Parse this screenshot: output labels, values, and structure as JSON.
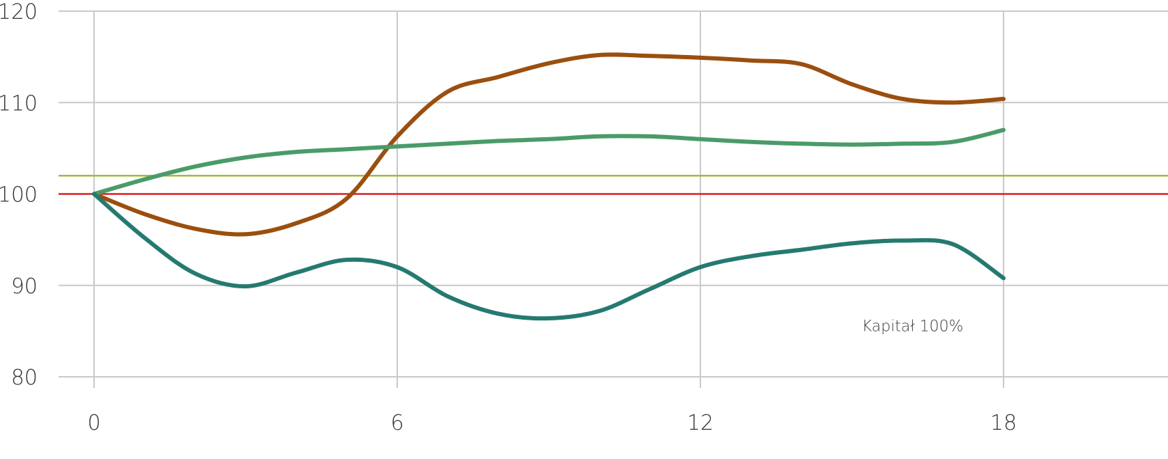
{
  "chart_data": {
    "type": "line",
    "title": "",
    "xlabel": "",
    "ylabel": "",
    "xlim": [
      0,
      20
    ],
    "ylim": [
      80,
      120
    ],
    "x_ticks": [
      0,
      6,
      12,
      18
    ],
    "y_ticks": [
      80,
      90,
      100,
      110,
      120
    ],
    "grid": true,
    "series": [
      {
        "color": "#9b4f0f",
        "x": [
          0,
          1,
          2,
          3,
          4,
          5,
          6,
          7,
          8,
          9,
          10,
          11,
          12,
          13,
          14,
          15,
          16,
          17,
          18
        ],
        "y": [
          100,
          97.8,
          96.2,
          95.6,
          96.8,
          99.5,
          106.3,
          111.2,
          112.8,
          114.3,
          115.2,
          115.1,
          114.9,
          114.6,
          114.2,
          112.0,
          110.4,
          110.0,
          110.4
        ]
      },
      {
        "color": "#4a9b68",
        "x": [
          0,
          1,
          2,
          3,
          4,
          5,
          6,
          7,
          8,
          9,
          10,
          11,
          12,
          13,
          14,
          15,
          16,
          17,
          18
        ],
        "y": [
          100,
          101.6,
          103.0,
          104.0,
          104.6,
          104.9,
          105.2,
          105.5,
          105.8,
          106.0,
          106.3,
          106.3,
          106.0,
          105.7,
          105.5,
          105.4,
          105.5,
          105.7,
          107.0
        ]
      },
      {
        "color": "#257a70",
        "x": [
          0,
          1,
          2,
          3,
          4,
          5,
          6,
          7,
          8,
          9,
          10,
          11,
          12,
          13,
          14,
          15,
          16,
          17,
          18
        ],
        "y": [
          100,
          95.2,
          91.3,
          89.9,
          91.4,
          92.8,
          92.0,
          88.8,
          86.9,
          86.4,
          87.2,
          89.6,
          92.0,
          93.2,
          93.9,
          94.6,
          94.9,
          94.5,
          90.8
        ]
      }
    ],
    "reference_lines": [
      {
        "y": 102,
        "color": "#9ebd38"
      },
      {
        "y": 100,
        "color": "#d72020"
      }
    ],
    "annotations": [
      {
        "text": "Kapitał 100%",
        "x": 16.2,
        "y": 85.0
      }
    ]
  }
}
